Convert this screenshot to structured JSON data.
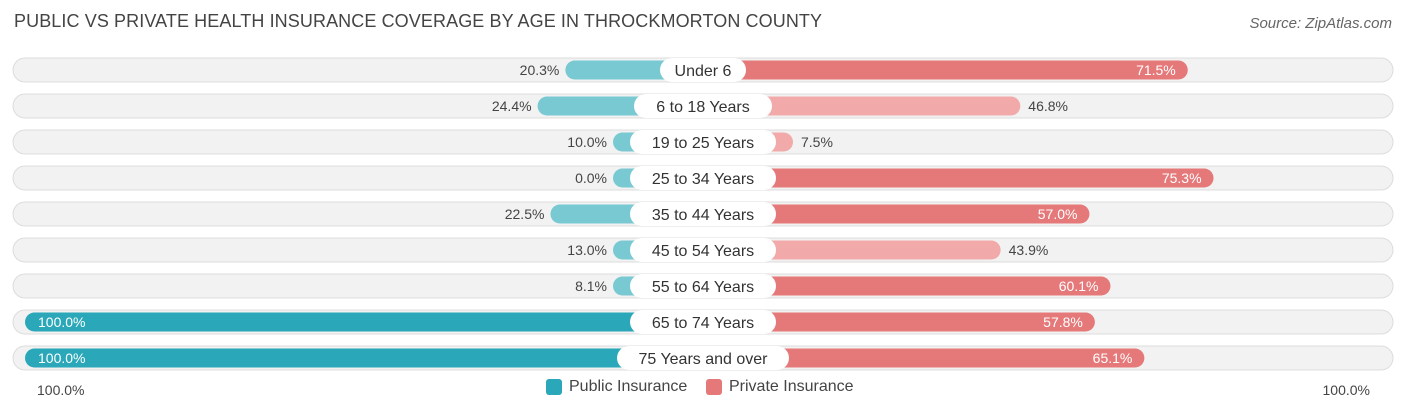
{
  "title": "PUBLIC VS PRIVATE HEALTH INSURANCE COVERAGE BY AGE IN THROCKMORTON COUNTY",
  "source": "Source: ZipAtlas.com",
  "colors": {
    "public_dark": "#2aa7b8",
    "public_light": "#79c9d3",
    "private_dark": "#e5797a",
    "private_light": "#f1a9a9",
    "row_bg": "#f2f2f2",
    "row_border": "#dcdcdc"
  },
  "chart_data": {
    "type": "bar",
    "orientation": "diverging-horizontal",
    "title": "PUBLIC VS PRIVATE HEALTH INSURANCE COVERAGE BY AGE IN THROCKMORTON COUNTY",
    "categories": [
      "Under 6",
      "6 to 18 Years",
      "19 to 25 Years",
      "25 to 34 Years",
      "35 to 44 Years",
      "45 to 54 Years",
      "55 to 64 Years",
      "65 to 74 Years",
      "75 Years and over"
    ],
    "series": [
      {
        "name": "Public Insurance",
        "values": [
          20.3,
          24.4,
          10.0,
          0.0,
          22.5,
          13.0,
          8.1,
          100.0,
          100.0
        ],
        "labels": [
          "20.3%",
          "24.4%",
          "10.0%",
          "0.0%",
          "22.5%",
          "13.0%",
          "8.1%",
          "100.0%",
          "100.0%"
        ]
      },
      {
        "name": "Private Insurance",
        "values": [
          71.5,
          46.8,
          7.5,
          75.3,
          57.0,
          43.9,
          60.1,
          57.8,
          65.1
        ],
        "labels": [
          "71.5%",
          "46.8%",
          "7.5%",
          "75.3%",
          "57.0%",
          "43.9%",
          "60.1%",
          "57.8%",
          "65.1%"
        ]
      }
    ],
    "xlim": [
      0,
      100
    ],
    "axis_labels": {
      "left": "100.0%",
      "right": "100.0%"
    },
    "legend": [
      "Public Insurance",
      "Private Insurance"
    ],
    "legend_position": "bottom-center"
  }
}
